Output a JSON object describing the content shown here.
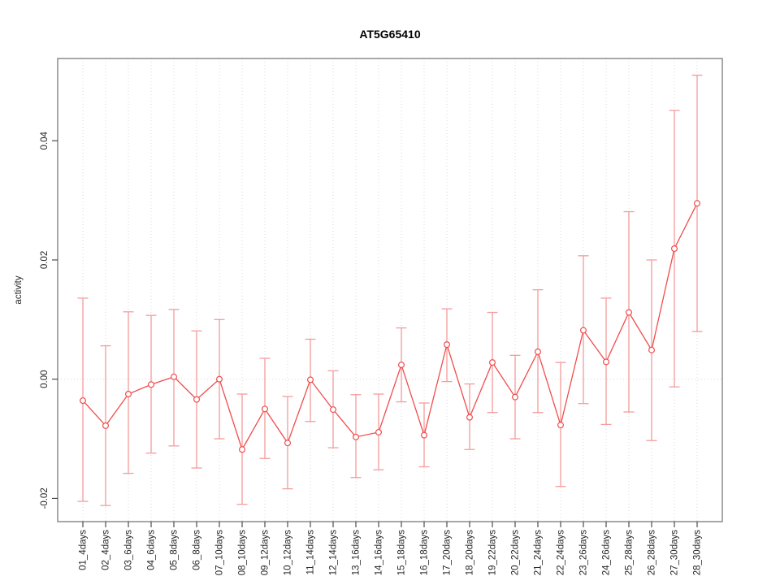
{
  "window": {
    "background": "#ffffff"
  },
  "chart_data": {
    "type": "line",
    "error_bars": true,
    "title": "AT5G65410",
    "xlabel": "",
    "ylabel": "activity",
    "legend": "none",
    "categories": [
      "01_4days",
      "02_4days",
      "03_6days",
      "04_6days",
      "05_8days",
      "06_8days",
      "07_10days",
      "08_10days",
      "09_12days",
      "10_12days",
      "11_14days",
      "12_14days",
      "13_16days",
      "14_16days",
      "15_18days",
      "16_18days",
      "17_20days",
      "18_20days",
      "19_22days",
      "20_22days",
      "21_24days",
      "22_24days",
      "23_26days",
      "24_26days",
      "25_28days",
      "26_28days",
      "27_30days",
      "28_30days"
    ],
    "series": [
      {
        "name": "activity",
        "values": [
          -0.0036,
          -0.0078,
          -0.0025,
          -0.0009,
          0.0004,
          -0.0034,
          0.0,
          -0.0118,
          -0.005,
          -0.0107,
          -0.0001,
          -0.0051,
          -0.0097,
          -0.0089,
          0.0024,
          -0.0094,
          0.0058,
          -0.0064,
          0.0028,
          -0.003,
          0.0046,
          -0.0077,
          0.0082,
          0.0029,
          0.0112,
          0.0049,
          0.0219,
          0.0295
        ],
        "upper": [
          0.0136,
          0.0056,
          0.0113,
          0.0107,
          0.0117,
          0.0081,
          0.01,
          -0.0025,
          0.0035,
          -0.0029,
          0.0067,
          0.0014,
          -0.0026,
          -0.0025,
          0.0086,
          -0.004,
          0.0118,
          -0.0008,
          0.0112,
          0.004,
          0.015,
          0.0028,
          0.0207,
          0.0136,
          0.0281,
          0.02,
          0.0451,
          0.051
        ],
        "lower": [
          -0.0205,
          -0.0212,
          -0.0158,
          -0.0124,
          -0.0112,
          -0.0149,
          -0.01,
          -0.021,
          -0.0133,
          -0.0184,
          -0.0071,
          -0.0115,
          -0.0165,
          -0.0152,
          -0.0038,
          -0.0147,
          -0.0004,
          -0.0118,
          -0.0056,
          -0.01,
          -0.0056,
          -0.018,
          -0.0041,
          -0.0076,
          -0.0055,
          -0.0103,
          -0.0013,
          0.008
        ]
      }
    ],
    "yticks": {
      "values": [
        -0.02,
        0.0,
        0.02,
        0.04
      ],
      "labels": [
        "-0.02",
        "0.00",
        "0.02",
        "0.04"
      ]
    },
    "ylim": [
      -0.0239,
      0.0538
    ],
    "grid": {
      "vertical_dotted_at_each_category": true,
      "horizontal_dotted_at_zero": true
    },
    "colors": {
      "series_line": "#f04c4c",
      "error_bar": "#f49c9c",
      "marker_stroke": "#f04c4c",
      "marker_fill": "#ffffff",
      "gridline": "#dadada",
      "frame": "#6e6e6e",
      "tick": "#3c3c3c",
      "tick_label": "#262626",
      "title": "#000000"
    }
  }
}
